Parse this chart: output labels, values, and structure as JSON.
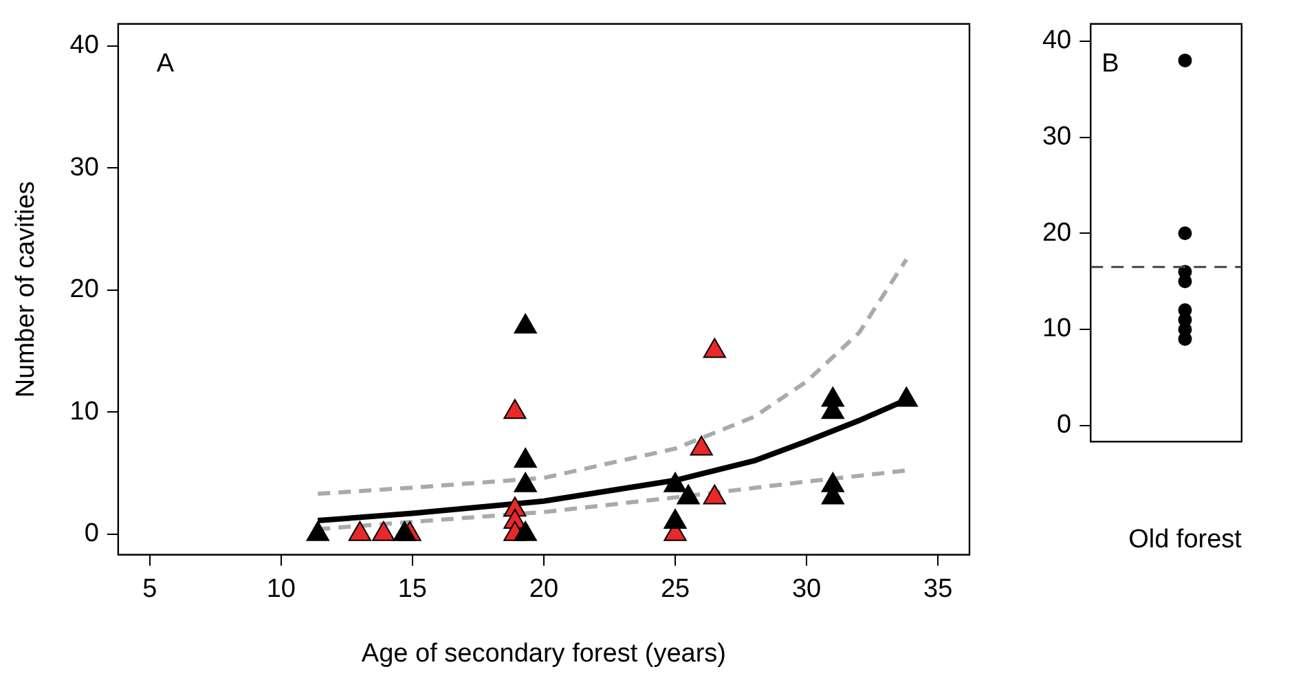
{
  "chart_data": [
    {
      "type": "scatter",
      "xlabel": "Age of secondary forest (years)",
      "ylabel": "Number of cavities",
      "annotations": [
        "A"
      ],
      "xlim": [
        3.8,
        36.2
      ],
      "xticks": [
        5,
        10,
        15,
        20,
        25,
        30,
        35
      ],
      "ylim": [
        -1.7,
        41.8
      ],
      "yticks": [
        0,
        10,
        20,
        30,
        40
      ],
      "grid": false,
      "legend": false,
      "marker": "triangle",
      "series": [
        {
          "type": "line",
          "color": "#aaaaaa",
          "line_style": "dashed",
          "marker": "none",
          "x": [
            11.4,
            15,
            20,
            25,
            28,
            30,
            32,
            33.8
          ],
          "values": [
            3.3,
            3.8,
            4.6,
            7,
            9.6,
            12.5,
            16.5,
            22.5
          ]
        },
        {
          "type": "line",
          "color": "#aaaaaa",
          "line_style": "dashed",
          "marker": "none",
          "x": [
            11.4,
            15,
            20,
            25,
            30,
            33.8
          ],
          "values": [
            0.4,
            1,
            1.8,
            3,
            4.3,
            5.2
          ]
        },
        {
          "type": "line",
          "color": "#000000",
          "line_style": "solid",
          "marker": "none",
          "x": [
            11.4,
            15,
            20,
            25,
            28,
            30,
            32,
            33.8
          ],
          "values": [
            1.1,
            1.7,
            2.7,
            4.4,
            6,
            7.6,
            9.3,
            11
          ]
        },
        {
          "color": "#000000",
          "x": [
            11.4,
            14.7,
            19.3,
            19.3,
            19.3,
            19.3,
            25,
            25,
            25.5,
            31,
            31,
            31,
            31,
            33.8
          ],
          "values": [
            0,
            0,
            17,
            6,
            4,
            0,
            4,
            1,
            3,
            11,
            10,
            4,
            3,
            11
          ]
        },
        {
          "color": "#e8282a",
          "x": [
            13,
            13.9,
            14.9,
            18.9,
            18.9,
            18.9,
            18.9,
            25,
            26,
            26.5,
            26.5
          ],
          "values": [
            0,
            0,
            0,
            10,
            2,
            1,
            0,
            0,
            7,
            15,
            3
          ]
        }
      ]
    },
    {
      "type": "scatter",
      "categories": [
        "Old forest"
      ],
      "annotations": [
        "B"
      ],
      "ylim": [
        -1.7,
        41.8
      ],
      "yticks": [
        0,
        10,
        20,
        30,
        40
      ],
      "grid": false,
      "legend": false,
      "marker": "circle",
      "ref_lines": [
        {
          "axis": "y",
          "value": 16.5,
          "color": "#444444",
          "line_style": "dashed"
        }
      ],
      "series": [
        {
          "color": "#000000",
          "x": [
            "Old forest",
            "Old forest",
            "Old forest",
            "Old forest",
            "Old forest",
            "Old forest",
            "Old forest",
            "Old forest"
          ],
          "values": [
            38,
            20,
            16,
            15,
            12,
            11,
            10,
            9
          ]
        }
      ]
    }
  ]
}
